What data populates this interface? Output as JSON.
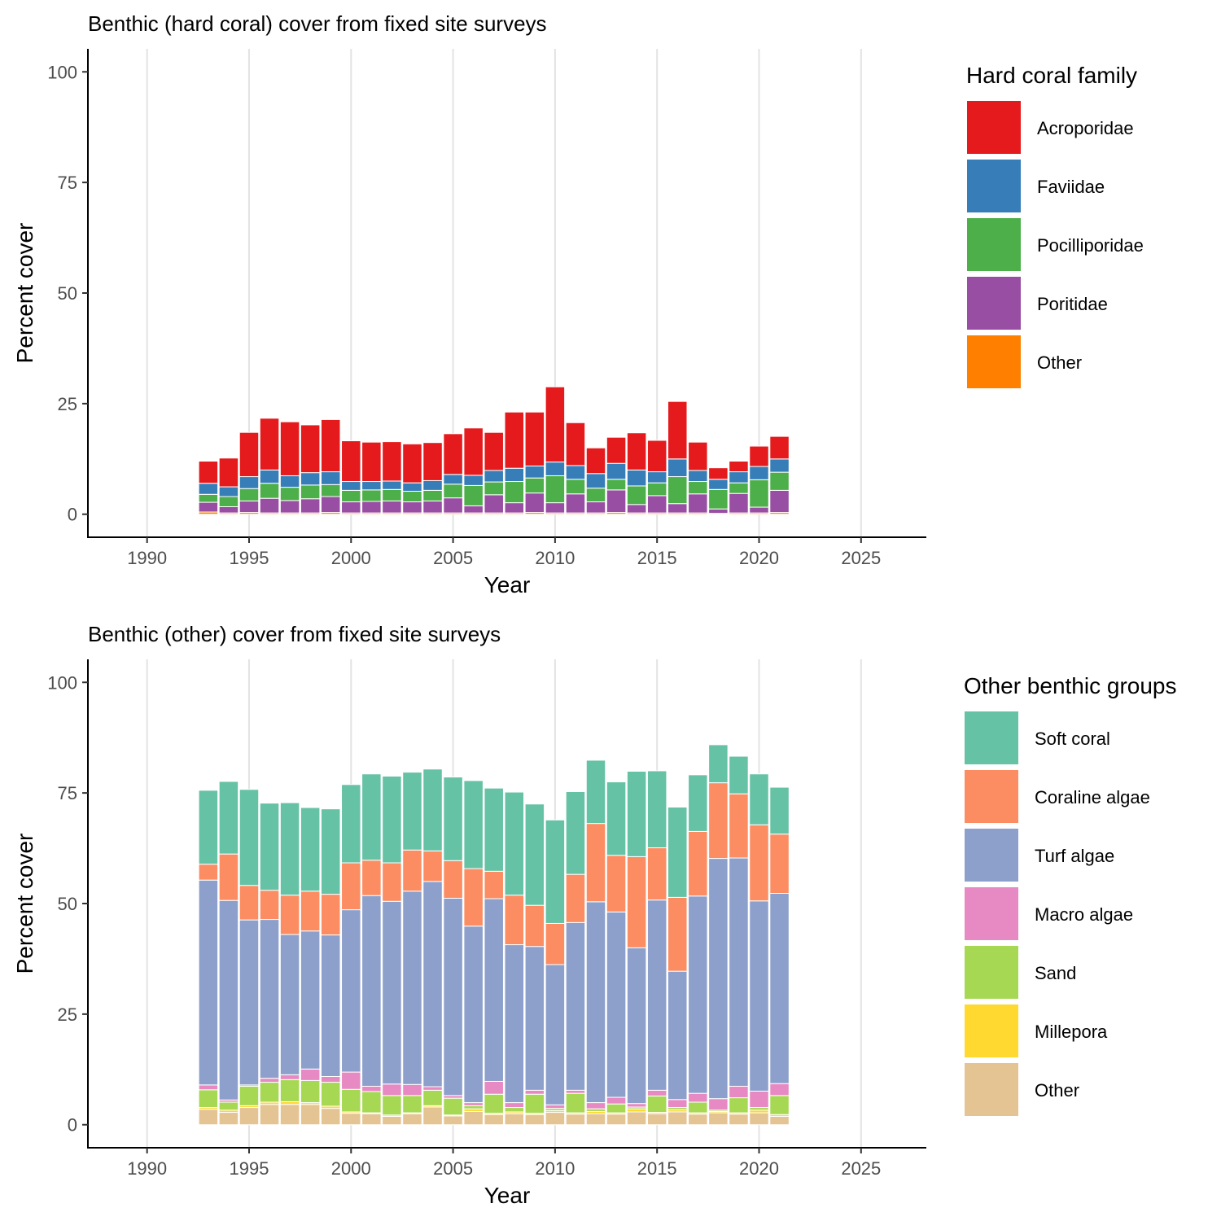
{
  "chart_data": [
    {
      "type": "bar",
      "stacked": true,
      "title": "Benthic (hard coral) cover from fixed site surveys",
      "xlabel": "Year",
      "ylabel": "Percent cover",
      "xlim": [
        1987.1,
        2028.2
      ],
      "ylim": [
        -5.2,
        105.2
      ],
      "xticks": [
        "1990",
        "1995",
        "2000",
        "2005",
        "2010",
        "2015",
        "2020",
        "2025"
      ],
      "yticks": [
        "0",
        "25",
        "50",
        "75",
        "100"
      ],
      "grid": "vertical major",
      "legend_title": "Hard coral family",
      "legend_position": "right",
      "x": [
        1993,
        1994,
        1995,
        1996,
        1997,
        1998,
        1999,
        2000,
        2001,
        2002,
        2003,
        2004,
        2005,
        2006,
        2007,
        2008,
        2009,
        2010,
        2011,
        2012,
        2013,
        2014,
        2015,
        2016,
        2017,
        2018,
        2019,
        2020,
        2021
      ],
      "series": [
        {
          "name": "Other",
          "color": "#FF7F00",
          "values": [
            0.5,
            0.3,
            0.4,
            0.3,
            0.3,
            0.3,
            0.4,
            0.3,
            0.3,
            0.3,
            0.3,
            0.3,
            0.3,
            0.3,
            0.3,
            0.3,
            0.4,
            0.3,
            0.3,
            0.3,
            0.4,
            0.3,
            0.3,
            0.3,
            0.3,
            0.2,
            0.3,
            0.3,
            0.4
          ]
        },
        {
          "name": "Poritidae",
          "color": "#984EA3",
          "values": [
            2.2,
            1.4,
            2.6,
            3.3,
            2.8,
            3.2,
            3.6,
            2.5,
            2.6,
            2.7,
            2.5,
            2.7,
            3.4,
            1.6,
            4.1,
            2.3,
            4.4,
            2.3,
            4.3,
            2.5,
            5.1,
            1.9,
            3.9,
            2.1,
            4.3,
            1.0,
            4.4,
            1.3,
            5.0
          ]
        },
        {
          "name": "Pocilliporidae",
          "color": "#4DAF4A",
          "values": [
            1.8,
            2.3,
            2.8,
            3.4,
            3.0,
            3.1,
            2.7,
            2.6,
            2.6,
            2.6,
            2.4,
            2.4,
            3.1,
            4.6,
            2.9,
            4.8,
            3.4,
            6.1,
            3.3,
            3.1,
            2.4,
            4.2,
            2.9,
            6.1,
            2.8,
            4.4,
            2.4,
            6.2,
            4.1
          ]
        },
        {
          "name": "Faviidae",
          "color": "#377EB8",
          "values": [
            2.5,
            2.2,
            2.7,
            3.0,
            2.6,
            2.8,
            2.9,
            2.0,
            1.9,
            1.9,
            1.9,
            2.2,
            2.2,
            2.3,
            2.6,
            3.0,
            2.7,
            3.1,
            3.1,
            3.3,
            3.6,
            3.6,
            2.5,
            4.0,
            2.5,
            2.3,
            2.5,
            3.0,
            3.0
          ]
        },
        {
          "name": "Acroporidae",
          "color": "#E41A1C",
          "values": [
            5.0,
            6.5,
            10.0,
            11.7,
            12.2,
            10.8,
            11.8,
            9.2,
            8.9,
            8.9,
            8.8,
            8.6,
            9.2,
            10.7,
            8.6,
            12.7,
            12.2,
            17.0,
            9.7,
            5.8,
            5.9,
            8.4,
            7.1,
            13.0,
            6.4,
            2.6,
            2.4,
            4.6,
            5.1
          ]
        }
      ]
    },
    {
      "type": "bar",
      "stacked": true,
      "title": "Benthic (other) cover from fixed site surveys",
      "xlabel": "Year",
      "ylabel": "Percent cover",
      "xlim": [
        1987.1,
        2028.2
      ],
      "ylim": [
        -5.2,
        105.2
      ],
      "xticks": [
        "1990",
        "1995",
        "2000",
        "2005",
        "2010",
        "2015",
        "2020",
        "2025"
      ],
      "yticks": [
        "0",
        "25",
        "50",
        "75",
        "100"
      ],
      "grid": "vertical major",
      "legend_title": "Other benthic groups",
      "legend_position": "right",
      "x": [
        1993,
        1994,
        1995,
        1996,
        1997,
        1998,
        1999,
        2000,
        2001,
        2002,
        2003,
        2004,
        2005,
        2006,
        2007,
        2008,
        2009,
        2010,
        2011,
        2012,
        2013,
        2014,
        2015,
        2016,
        2017,
        2018,
        2019,
        2020,
        2021
      ],
      "series": [
        {
          "name": "Other",
          "color": "#E5C494",
          "values": [
            3.5,
            2.8,
            3.9,
            4.6,
            4.6,
            4.6,
            3.7,
            2.6,
            2.5,
            1.9,
            2.5,
            4.0,
            2.0,
            3.0,
            2.3,
            2.5,
            2.3,
            2.8,
            2.4,
            2.5,
            2.4,
            2.9,
            2.5,
            2.9,
            2.4,
            2.7,
            2.4,
            2.7,
            1.9
          ]
        },
        {
          "name": "Millepora",
          "color": "#FFD92F",
          "values": [
            0.4,
            0.5,
            0.4,
            0.5,
            0.6,
            0.4,
            0.5,
            0.3,
            0.2,
            0.3,
            0.2,
            0.3,
            0.2,
            0.6,
            0.3,
            0.4,
            0.3,
            0.4,
            0.3,
            0.5,
            0.3,
            0.7,
            0.3,
            0.5,
            0.3,
            0.3,
            0.3,
            0.6,
            0.4
          ]
        },
        {
          "name": "Sand",
          "color": "#A6D854",
          "values": [
            4.0,
            1.8,
            4.4,
            4.5,
            5.0,
            5.0,
            5.4,
            5.1,
            4.8,
            4.4,
            3.9,
            3.5,
            3.8,
            0.7,
            4.3,
            1.0,
            4.3,
            0.5,
            4.4,
            0.6,
            2.0,
            0.4,
            3.7,
            0.5,
            2.4,
            0.3,
            3.4,
            0.6,
            4.3
          ]
        },
        {
          "name": "Macro algae",
          "color": "#E78AC3",
          "values": [
            1.1,
            0.5,
            0.3,
            0.9,
            1.1,
            2.6,
            1.3,
            3.9,
            1.2,
            2.6,
            2.5,
            0.8,
            0.6,
            0.7,
            2.9,
            1.1,
            0.9,
            0.8,
            0.7,
            1.4,
            1.5,
            0.8,
            1.3,
            1.8,
            2.0,
            2.6,
            2.6,
            3.7,
            2.7
          ]
        },
        {
          "name": "Turf algae",
          "color": "#8DA0CB",
          "values": [
            46.3,
            45.1,
            37.3,
            35.9,
            31.7,
            31.2,
            32.0,
            36.7,
            43.1,
            41.3,
            43.7,
            46.4,
            44.6,
            39.9,
            41.3,
            35.7,
            32.5,
            31.7,
            37.9,
            45.4,
            41.9,
            35.2,
            43.0,
            29.0,
            44.6,
            54.3,
            51.6,
            43.0,
            43.0
          ]
        },
        {
          "name": "Coraline algae",
          "color": "#FC8D62",
          "values": [
            3.6,
            10.5,
            7.8,
            6.6,
            8.9,
            9.0,
            9.2,
            10.6,
            8.0,
            8.7,
            9.3,
            6.9,
            8.5,
            13.0,
            6.2,
            11.2,
            9.3,
            9.3,
            10.9,
            17.7,
            12.8,
            20.6,
            11.8,
            16.7,
            14.6,
            17.1,
            14.5,
            17.2,
            13.4
          ]
        },
        {
          "name": "Soft coral",
          "color": "#66C2A5",
          "values": [
            16.7,
            16.4,
            21.7,
            19.7,
            20.9,
            18.9,
            19.3,
            17.7,
            19.5,
            19.6,
            17.6,
            18.5,
            18.9,
            19.9,
            18.8,
            23.3,
            22.9,
            23.4,
            18.7,
            14.3,
            16.6,
            19.3,
            17.4,
            20.4,
            12.8,
            8.6,
            8.5,
            11.5,
            10.6
          ]
        }
      ]
    }
  ]
}
